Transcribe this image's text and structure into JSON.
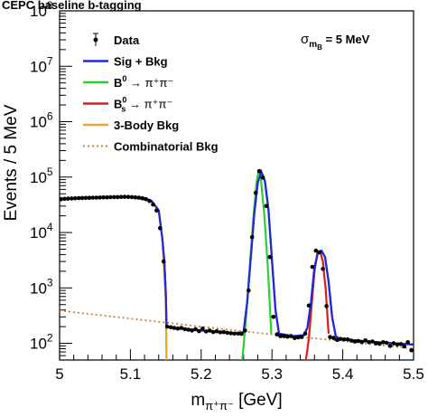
{
  "chart_data": {
    "type": "line",
    "title": "CEPC baseline b-tagging",
    "annotation": {
      "main": "σ",
      "sub": "m",
      "subsub": "B",
      "rest": " = 5 MeV"
    },
    "xlabel": {
      "main": "m",
      "sub": "π⁺π⁻",
      "rest": " [GeV]"
    },
    "ylabel": "Events / 5 MeV",
    "xlim": [
      5.0,
      5.5
    ],
    "ylim": [
      50,
      100000000
    ],
    "yscale": "log",
    "x_ticks": [
      "5",
      "5.1",
      "5.2",
      "5.3",
      "5.4",
      "5.5"
    ],
    "y_ticks": [
      {
        "base": "10",
        "exp": "2"
      },
      {
        "base": "10",
        "exp": "3"
      },
      {
        "base": "10",
        "exp": "4"
      },
      {
        "base": "10",
        "exp": "5"
      },
      {
        "base": "10",
        "exp": "6"
      },
      {
        "base": "10",
        "exp": "7"
      },
      {
        "base": "10",
        "exp": "8"
      }
    ],
    "legend": [
      {
        "label": "Data",
        "style": "marker",
        "color": "#000000"
      },
      {
        "label": "Sig + Bkg",
        "style": "solid",
        "color": "#1f2bd1"
      },
      {
        "label": "B⁰ → π⁺π⁻",
        "main": "B",
        "sup": "0",
        "sub": "",
        "rest": " → π⁺π⁻",
        "style": "solid",
        "color": "#33cc33"
      },
      {
        "label": "B_s⁰ → π⁺π⁻",
        "main": "B",
        "sup": "0",
        "sub": "s",
        "rest": " → π⁺π⁻",
        "style": "solid",
        "color": "#e01a1a"
      },
      {
        "label": "3-Body Bkg",
        "style": "solid",
        "color": "#f0a030"
      },
      {
        "label": "Combinatorial Bkg",
        "style": "dotted",
        "color": "#c8823c"
      }
    ],
    "series": [
      {
        "name": "Data",
        "x": [
          5.002,
          5.007,
          5.012,
          5.017,
          5.022,
          5.027,
          5.032,
          5.037,
          5.042,
          5.047,
          5.052,
          5.057,
          5.062,
          5.067,
          5.072,
          5.077,
          5.082,
          5.087,
          5.092,
          5.097,
          5.102,
          5.107,
          5.112,
          5.117,
          5.122,
          5.127,
          5.132,
          5.137,
          5.142,
          5.147,
          5.152,
          5.157,
          5.162,
          5.167,
          5.172,
          5.177,
          5.182,
          5.187,
          5.192,
          5.197,
          5.202,
          5.207,
          5.212,
          5.217,
          5.222,
          5.227,
          5.232,
          5.237,
          5.242,
          5.247,
          5.252,
          5.257,
          5.262,
          5.267,
          5.272,
          5.277,
          5.282,
          5.287,
          5.292,
          5.297,
          5.302,
          5.307,
          5.312,
          5.317,
          5.322,
          5.327,
          5.332,
          5.337,
          5.342,
          5.347,
          5.352,
          5.357,
          5.362,
          5.367,
          5.372,
          5.377,
          5.382,
          5.387,
          5.392,
          5.397,
          5.402,
          5.407,
          5.412,
          5.417,
          5.422,
          5.427,
          5.432,
          5.437,
          5.442,
          5.447,
          5.452,
          5.457,
          5.462,
          5.467,
          5.472,
          5.477,
          5.482,
          5.487,
          5.492,
          5.497
        ],
        "y": [
          40000,
          40500,
          40800,
          41200,
          41500,
          41800,
          41900,
          42100,
          42300,
          42500,
          42600,
          42800,
          43000,
          43100,
          43300,
          43500,
          43600,
          43800,
          44000,
          43800,
          43500,
          43000,
          42500,
          41500,
          40000,
          37000,
          32000,
          25000,
          12000,
          3000,
          200,
          195,
          190,
          185,
          190,
          180,
          176,
          170,
          180,
          166,
          185,
          164,
          170,
          160,
          165,
          158,
          160,
          155,
          152,
          150,
          150,
          148,
          170,
          900,
          8200,
          52000,
          128000,
          98000,
          30000,
          3600,
          300,
          145,
          135,
          135,
          132,
          135,
          125,
          128,
          130,
          150,
          480,
          2400,
          4700,
          4400,
          2200,
          470,
          130,
          125,
          115,
          120,
          118,
          118,
          112,
          108,
          110,
          105,
          113,
          105,
          108,
          100,
          98,
          105,
          102,
          90,
          100,
          95,
          97,
          88,
          105,
          75
        ]
      },
      {
        "name": "Sig + Bkg",
        "x": [
          5.0,
          5.05,
          5.1,
          5.12,
          5.13,
          5.14,
          5.145,
          5.148,
          5.15,
          5.151,
          5.16,
          5.2,
          5.25,
          5.26,
          5.265,
          5.27,
          5.275,
          5.28,
          5.285,
          5.29,
          5.295,
          5.3,
          5.305,
          5.31,
          5.33,
          5.345,
          5.35,
          5.355,
          5.36,
          5.365,
          5.37,
          5.375,
          5.38,
          5.385,
          5.39,
          5.395,
          5.4,
          5.45,
          5.5
        ],
        "y": [
          40000,
          42800,
          43800,
          41500,
          37000,
          25000,
          8000,
          3000,
          800,
          205,
          190,
          170,
          150,
          160,
          560,
          3500,
          22000,
          80000,
          125000,
          85000,
          26000,
          3200,
          400,
          150,
          135,
          140,
          190,
          520,
          2300,
          4400,
          4700,
          3600,
          1300,
          300,
          135,
          122,
          118,
          105,
          95
        ]
      },
      {
        "name": "B⁰ → π⁺π⁻",
        "x": [
          5.258,
          5.263,
          5.268,
          5.273,
          5.278,
          5.281,
          5.284,
          5.289,
          5.294,
          5.299
        ],
        "y": [
          50,
          250,
          1800,
          14000,
          80000,
          125000,
          100000,
          22000,
          2600,
          150
        ]
      },
      {
        "name": "B_s⁰ → π⁺π⁻",
        "x": [
          5.348,
          5.352,
          5.356,
          5.36,
          5.364,
          5.368,
          5.372,
          5.376,
          5.38
        ],
        "y": [
          50,
          120,
          480,
          1900,
          4200,
          4600,
          3000,
          900,
          150
        ]
      },
      {
        "name": "3-Body Bkg",
        "x": [
          5.0,
          5.05,
          5.1,
          5.13,
          5.14,
          5.145,
          5.15,
          5.151
        ],
        "y": [
          40000,
          42800,
          43800,
          37000,
          25000,
          8000,
          600,
          50
        ]
      },
      {
        "name": "Combinatorial Bkg",
        "x": [
          5.0,
          5.1,
          5.2,
          5.3,
          5.4,
          5.5
        ],
        "y": [
          390,
          280,
          200,
          145,
          110,
          80
        ]
      }
    ]
  }
}
